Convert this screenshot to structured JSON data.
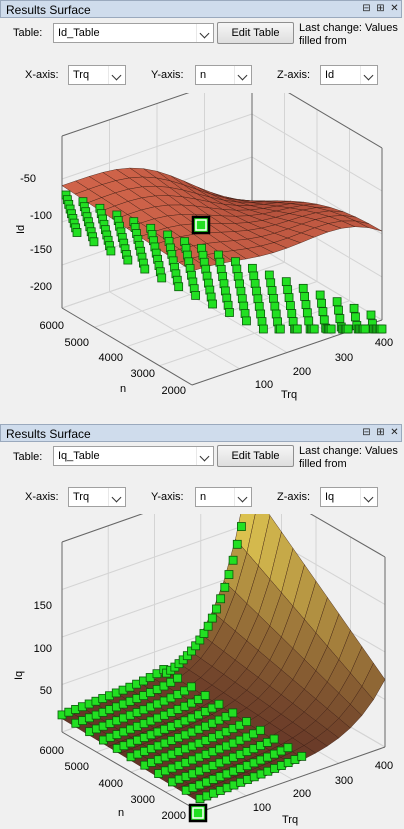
{
  "panels": [
    {
      "title": "Results Surface",
      "table_label": "Table:",
      "table_value": "Id_Table",
      "edit_button": "Edit Table",
      "last_change": "Last change: Values filled from",
      "x_label": "X-axis:",
      "x_value": "Trq",
      "y_label": "Y-axis:",
      "y_value": "n",
      "z_label": "Z-axis:",
      "z_value": "Id",
      "plot": {
        "zlabel": "Id",
        "ylabel": "n",
        "xlabel": "Trq",
        "zticks": [
          "-50",
          "-100",
          "-150",
          "-200"
        ],
        "nticks": [
          "6000",
          "5000",
          "4000",
          "3000",
          "2000"
        ],
        "trqticks": [
          "100",
          "200",
          "300",
          "400"
        ]
      }
    },
    {
      "title": "Results Surface",
      "table_label": "Table:",
      "table_value": "Iq_Table",
      "edit_button": "Edit Table",
      "last_change": "Last change: Values filled from",
      "x_label": "X-axis:",
      "x_value": "Trq",
      "y_label": "Y-axis:",
      "y_value": "n",
      "z_label": "Z-axis:",
      "z_value": "Iq",
      "plot": {
        "zlabel": "Iq",
        "ylabel": "n",
        "xlabel": "Trq",
        "zticks": [
          "150",
          "100",
          "50"
        ],
        "nticks": [
          "6000",
          "5000",
          "4000",
          "3000",
          "2000"
        ],
        "trqticks": [
          "100",
          "200",
          "300",
          "400"
        ]
      }
    }
  ],
  "colors": {
    "marker": "#22e022",
    "surface_light": "#f07a5a",
    "surface_dark": "#7a2a20",
    "titlebar": "#cfdcec"
  }
}
